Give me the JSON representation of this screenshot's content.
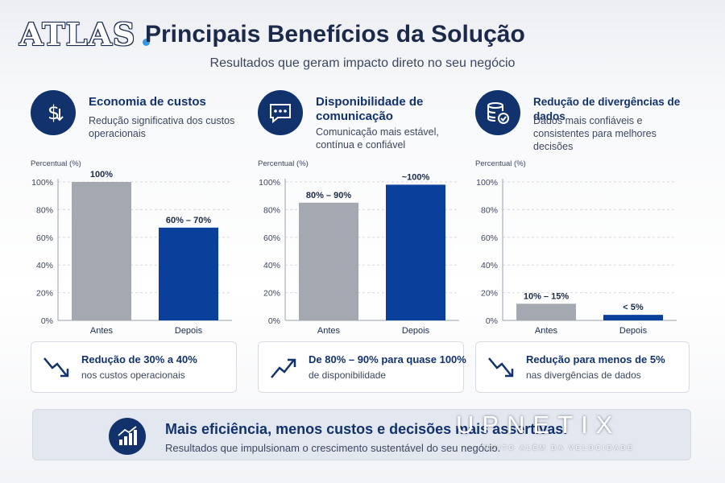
{
  "logo_text": "ATLAS",
  "title": "Principais Benefícios da Solução",
  "subtitle": "Resultados que geram impacto direto no seu negócio",
  "colors": {
    "navy": "#12326e",
    "bar_before": "#a3a8b1",
    "bar_after": "#0b3f9c",
    "text": "#1b2a4a"
  },
  "chart_data": [
    {
      "type": "bar",
      "title": "Economia de custos",
      "description": "Redução significativa dos custos operacionais",
      "icon": "dollar-down-icon",
      "ylabel": "Percentual (%)",
      "ylim": [
        0,
        100
      ],
      "yticks": [
        "0%",
        "20%",
        "40%",
        "60%",
        "80%",
        "100%"
      ],
      "categories": [
        "Antes",
        "Depois"
      ],
      "values": [
        100,
        67
      ],
      "data_labels": [
        "100%",
        "60% – 70%"
      ],
      "summary_title": "Redução de 30% a 40%",
      "summary_text": "nos custos operacionais",
      "summary_icon": "trend-down-icon",
      "grid": true
    },
    {
      "type": "bar",
      "title": "Disponibilidade de comunicação",
      "description": "Comunicação mais estável, contínua e confiável",
      "icon": "chat-bubble-icon",
      "ylabel": "Percentual (%)",
      "ylim": [
        0,
        100
      ],
      "yticks": [
        "0%",
        "20%",
        "40%",
        "60%",
        "80%",
        "100%"
      ],
      "categories": [
        "Antes",
        "Depois"
      ],
      "values": [
        85,
        98
      ],
      "data_labels": [
        "80% – 90%",
        "~100%"
      ],
      "summary_title": "De 80% – 90% para quase 100%",
      "summary_text": "de disponibilidade",
      "summary_icon": "trend-up-icon",
      "grid": true
    },
    {
      "type": "bar",
      "title": "Redução de divergências de dados",
      "description": "Dados mais confiáveis e consistentes para melhores decisões",
      "icon": "database-check-icon",
      "ylabel": "Percentual (%)",
      "ylim": [
        0,
        100
      ],
      "yticks": [
        "0%",
        "20%",
        "40%",
        "60%",
        "80%",
        "100%"
      ],
      "categories": [
        "Antes",
        "Depois"
      ],
      "values": [
        12,
        4
      ],
      "data_labels": [
        "10% – 15%",
        "< 5%"
      ],
      "summary_title": "Redução para menos de 5%",
      "summary_text": "nas divergências de dados",
      "summary_icon": "trend-down-icon",
      "grid": true
    }
  ],
  "banner": {
    "title": "Mais eficiência, menos custos e decisões mais assertivas.",
    "text": "Resultados que impulsionam o crescimento sustentável do seu negócio.",
    "icon": "growth-chart-icon"
  },
  "watermark": {
    "brand": "UPNETIX",
    "tagline": "MUITO ALÉM DA VELOCIDADE"
  }
}
